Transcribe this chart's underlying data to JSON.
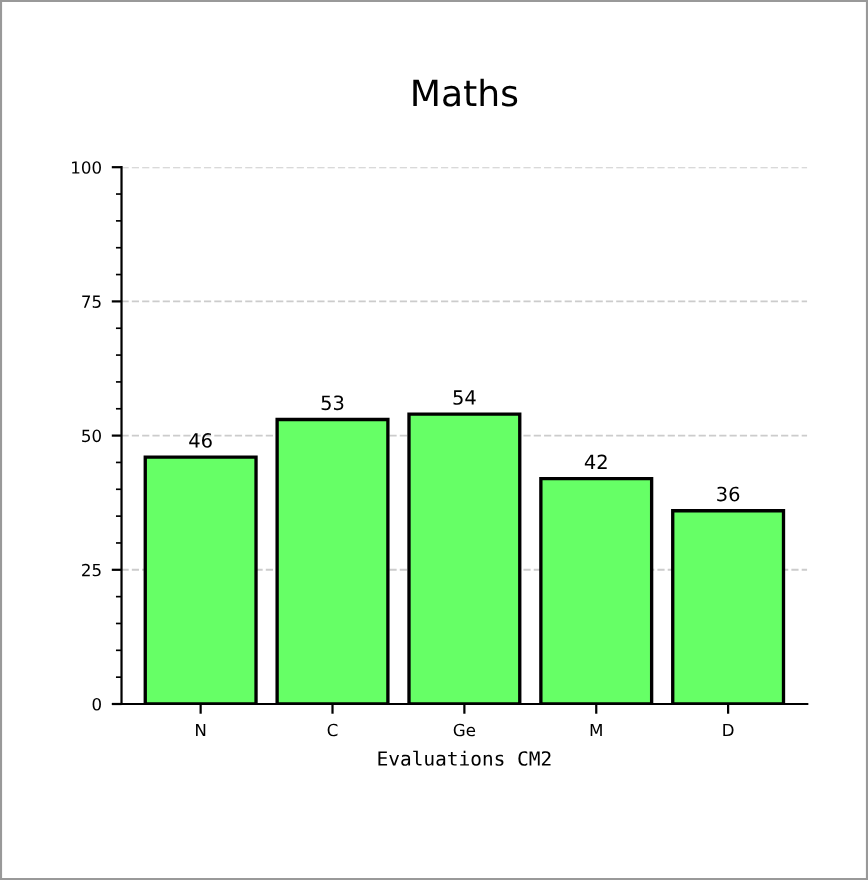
{
  "chart_data": {
    "type": "bar",
    "title": "Maths",
    "xlabel": "Evaluations CM2",
    "categories": [
      "N",
      "C",
      "Ge",
      "M",
      "D"
    ],
    "values": [
      46,
      53,
      54,
      42,
      36
    ],
    "color": "#66ff66",
    "ylim": [
      0,
      100
    ],
    "yticks": [
      0,
      25,
      50,
      75,
      100
    ],
    "grid": "y",
    "data_labels": true
  }
}
